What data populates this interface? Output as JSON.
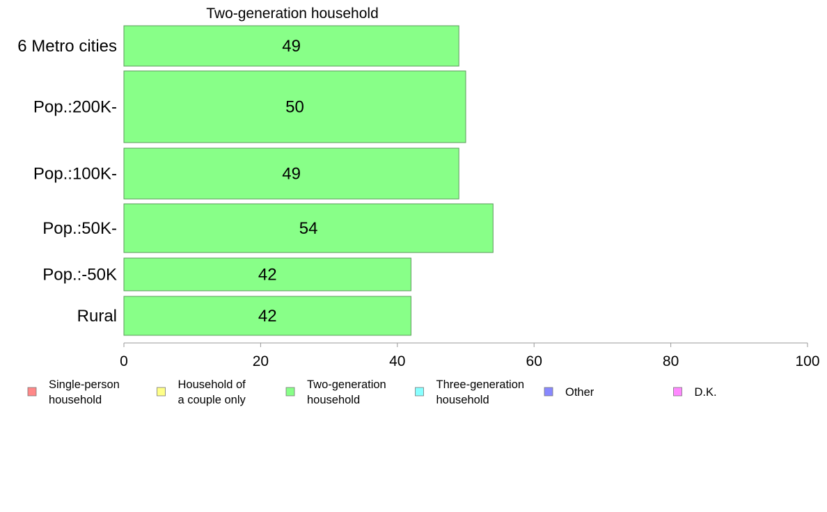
{
  "chart_data": {
    "type": "bar",
    "orientation": "horizontal",
    "title": "Two-generation household",
    "categories": [
      "6 Metro cities",
      "Pop.:200K-",
      "Pop.:100K-",
      "Pop.:50K-",
      "Pop.:-50K",
      "Rural"
    ],
    "values": [
      49,
      50,
      49,
      54,
      42,
      42
    ],
    "value_labels": [
      "49",
      "50",
      "49",
      "54",
      "42",
      "42"
    ],
    "bar_color": "#88ff88",
    "bar_edge_color": "#5a9a5a",
    "xlim": [
      0,
      100
    ],
    "xticks": [
      0,
      20,
      40,
      60,
      80,
      100
    ],
    "xlabel": "",
    "ylabel": "",
    "grid": false,
    "legend_position": "bottom",
    "legend": [
      {
        "lines": [
          "Single-person",
          "household"
        ],
        "color": "#ff8888"
      },
      {
        "lines": [
          "Household of",
          "a couple only"
        ],
        "color": "#ffff88"
      },
      {
        "lines": [
          "Two-generation",
          "household"
        ],
        "color": "#88ff88"
      },
      {
        "lines": [
          "Three-generation",
          "household"
        ],
        "color": "#88ffff"
      },
      {
        "lines": [
          "Other"
        ],
        "color": "#8888ff"
      },
      {
        "lines": [
          "D.K."
        ],
        "color": "#ff88ff"
      }
    ]
  }
}
